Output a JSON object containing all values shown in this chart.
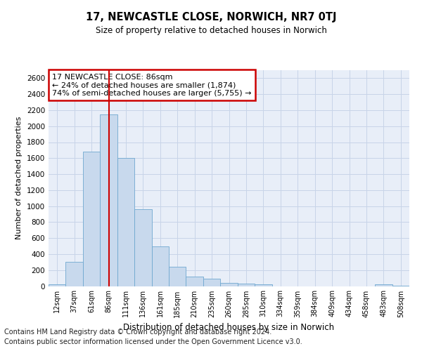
{
  "title": "17, NEWCASTLE CLOSE, NORWICH, NR7 0TJ",
  "subtitle": "Size of property relative to detached houses in Norwich",
  "xlabel": "Distribution of detached houses by size in Norwich",
  "ylabel": "Number of detached properties",
  "categories": [
    "12sqm",
    "37sqm",
    "61sqm",
    "86sqm",
    "111sqm",
    "136sqm",
    "161sqm",
    "185sqm",
    "210sqm",
    "235sqm",
    "260sqm",
    "285sqm",
    "310sqm",
    "334sqm",
    "359sqm",
    "384sqm",
    "409sqm",
    "434sqm",
    "458sqm",
    "483sqm",
    "508sqm"
  ],
  "values": [
    20,
    300,
    1680,
    2150,
    1600,
    960,
    500,
    245,
    115,
    95,
    40,
    35,
    25,
    0,
    0,
    0,
    0,
    0,
    0,
    20,
    5
  ],
  "bar_color": "#c8d9ed",
  "bar_edge_color": "#6fa8d0",
  "redline_index": 3,
  "annotation_text": "17 NEWCASTLE CLOSE: 86sqm\n← 24% of detached houses are smaller (1,874)\n74% of semi-detached houses are larger (5,755) →",
  "annotation_box_color": "#ffffff",
  "annotation_box_edge_color": "#cc0000",
  "redline_color": "#cc0000",
  "ylim": [
    0,
    2700
  ],
  "yticks": [
    0,
    200,
    400,
    600,
    800,
    1000,
    1200,
    1400,
    1600,
    1800,
    2000,
    2200,
    2400,
    2600
  ],
  "grid_color": "#c8d4e8",
  "background_color": "#e8eef8",
  "footnote1": "Contains HM Land Registry data © Crown copyright and database right 2024.",
  "footnote2": "Contains public sector information licensed under the Open Government Licence v3.0."
}
